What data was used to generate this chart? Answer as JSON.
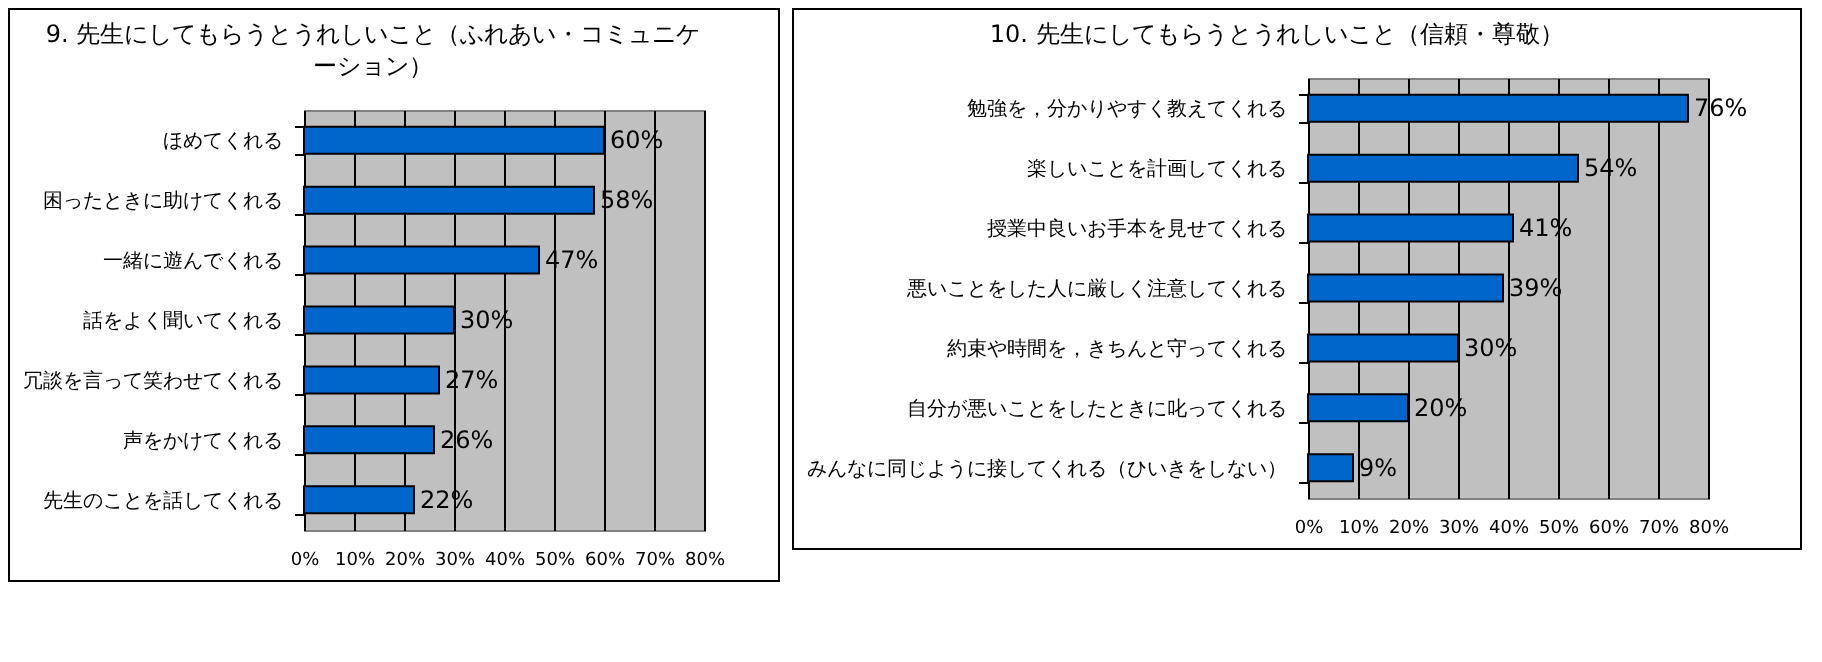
{
  "chart_data": [
    {
      "type": "bar",
      "orientation": "horizontal",
      "title": "9. 先生にしてもらうとうれしいこと（ふれあい・コミュニケーション）",
      "categories": [
        "ほめてくれる",
        "困ったときに助けてくれる",
        "一緒に遊んでくれる",
        "話をよく聞いてくれる",
        "冗談を言って笑わせてくれる",
        "声をかけてくれる",
        "先生のことを話してくれる"
      ],
      "series": [
        {
          "color": "#0066cc",
          "values": [
            60,
            58,
            47,
            30,
            27,
            26,
            22
          ],
          "value_labels": [
            "60%",
            "58%",
            "47%",
            "30%",
            "27%",
            "26%",
            "22%"
          ]
        }
      ],
      "xlim": [
        0,
        80
      ],
      "xticks": [
        {
          "value": 0,
          "label": "0%"
        },
        {
          "value": 10,
          "label": "10%"
        },
        {
          "value": 20,
          "label": "20%"
        },
        {
          "value": 30,
          "label": "30%"
        },
        {
          "value": 40,
          "label": "40%"
        },
        {
          "value": 50,
          "label": "50%"
        },
        {
          "value": 60,
          "label": "60%"
        },
        {
          "value": 70,
          "label": "70%"
        },
        {
          "value": 80,
          "label": "80%"
        }
      ],
      "grid": "x"
    },
    {
      "type": "bar",
      "orientation": "horizontal",
      "title": "10. 先生にしてもらうとうれしいこと（信頼・尊敬）",
      "categories": [
        "勉強を，分かりやすく教えてくれる",
        "楽しいことを計画してくれる",
        "授業中良いお手本を見せてくれる",
        "悪いことをした人に厳しく注意してくれる",
        "約束や時間を，きちんと守ってくれる",
        "自分が悪いことをしたときに叱ってくれる",
        "みんなに同じように接してくれる（ひいきをしない）"
      ],
      "series": [
        {
          "color": "#0066cc",
          "values": [
            76,
            54,
            41,
            39,
            30,
            20,
            9
          ],
          "value_labels": [
            "76%",
            "54%",
            "41%",
            "39%",
            "30%",
            "20%",
            "9%"
          ]
        }
      ],
      "xlim": [
        0,
        80
      ],
      "xticks": [
        {
          "value": 0,
          "label": "0%"
        },
        {
          "value": 10,
          "label": "10%"
        },
        {
          "value": 20,
          "label": "20%"
        },
        {
          "value": 30,
          "label": "30%"
        },
        {
          "value": 40,
          "label": "40%"
        },
        {
          "value": 50,
          "label": "50%"
        },
        {
          "value": 60,
          "label": "60%"
        },
        {
          "value": 70,
          "label": "70%"
        },
        {
          "value": 80,
          "label": "80%"
        }
      ],
      "grid": "x"
    }
  ]
}
